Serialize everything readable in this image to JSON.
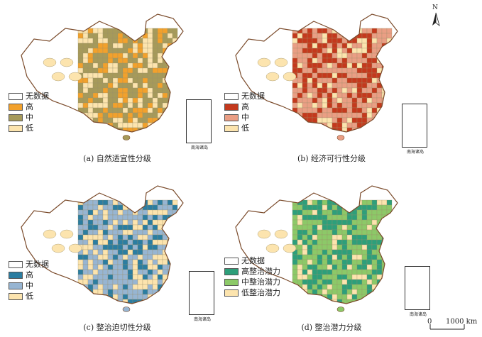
{
  "north_arrow": {
    "letter": "N"
  },
  "scale_bar": {
    "start": "0",
    "end": "1000 km"
  },
  "inset_label": "南海诸岛",
  "panels": [
    {
      "caption": "(a) 自然适宜性分级",
      "legend": [
        {
          "label": "无数据",
          "color": "#ffffff"
        },
        {
          "label": "高",
          "color": "#f2a12c"
        },
        {
          "label": "中",
          "color": "#a69a5a"
        },
        {
          "label": "低",
          "color": "#fce4ae"
        }
      ]
    },
    {
      "caption": "(b) 经济可行性分级",
      "legend": [
        {
          "label": "无数据",
          "color": "#ffffff"
        },
        {
          "label": "高",
          "color": "#c4391d"
        },
        {
          "label": "中",
          "color": "#ea9e84"
        },
        {
          "label": "低",
          "color": "#fce4ae"
        }
      ]
    },
    {
      "caption": "(c) 整治迫切性分级",
      "legend": [
        {
          "label": "无数据",
          "color": "#ffffff"
        },
        {
          "label": "高",
          "color": "#2b7da1"
        },
        {
          "label": "中",
          "color": "#97b5d2"
        },
        {
          "label": "低",
          "color": "#fce4ae"
        }
      ]
    },
    {
      "caption": "(d) 整治潜力分级",
      "legend": [
        {
          "label": "无数据",
          "color": "#ffffff"
        },
        {
          "label": "高整治潜力",
          "color": "#2d9f7a"
        },
        {
          "label": "中整治潜力",
          "color": "#8cc968"
        },
        {
          "label": "低整治潜力",
          "color": "#fce4ae"
        }
      ]
    }
  ]
}
